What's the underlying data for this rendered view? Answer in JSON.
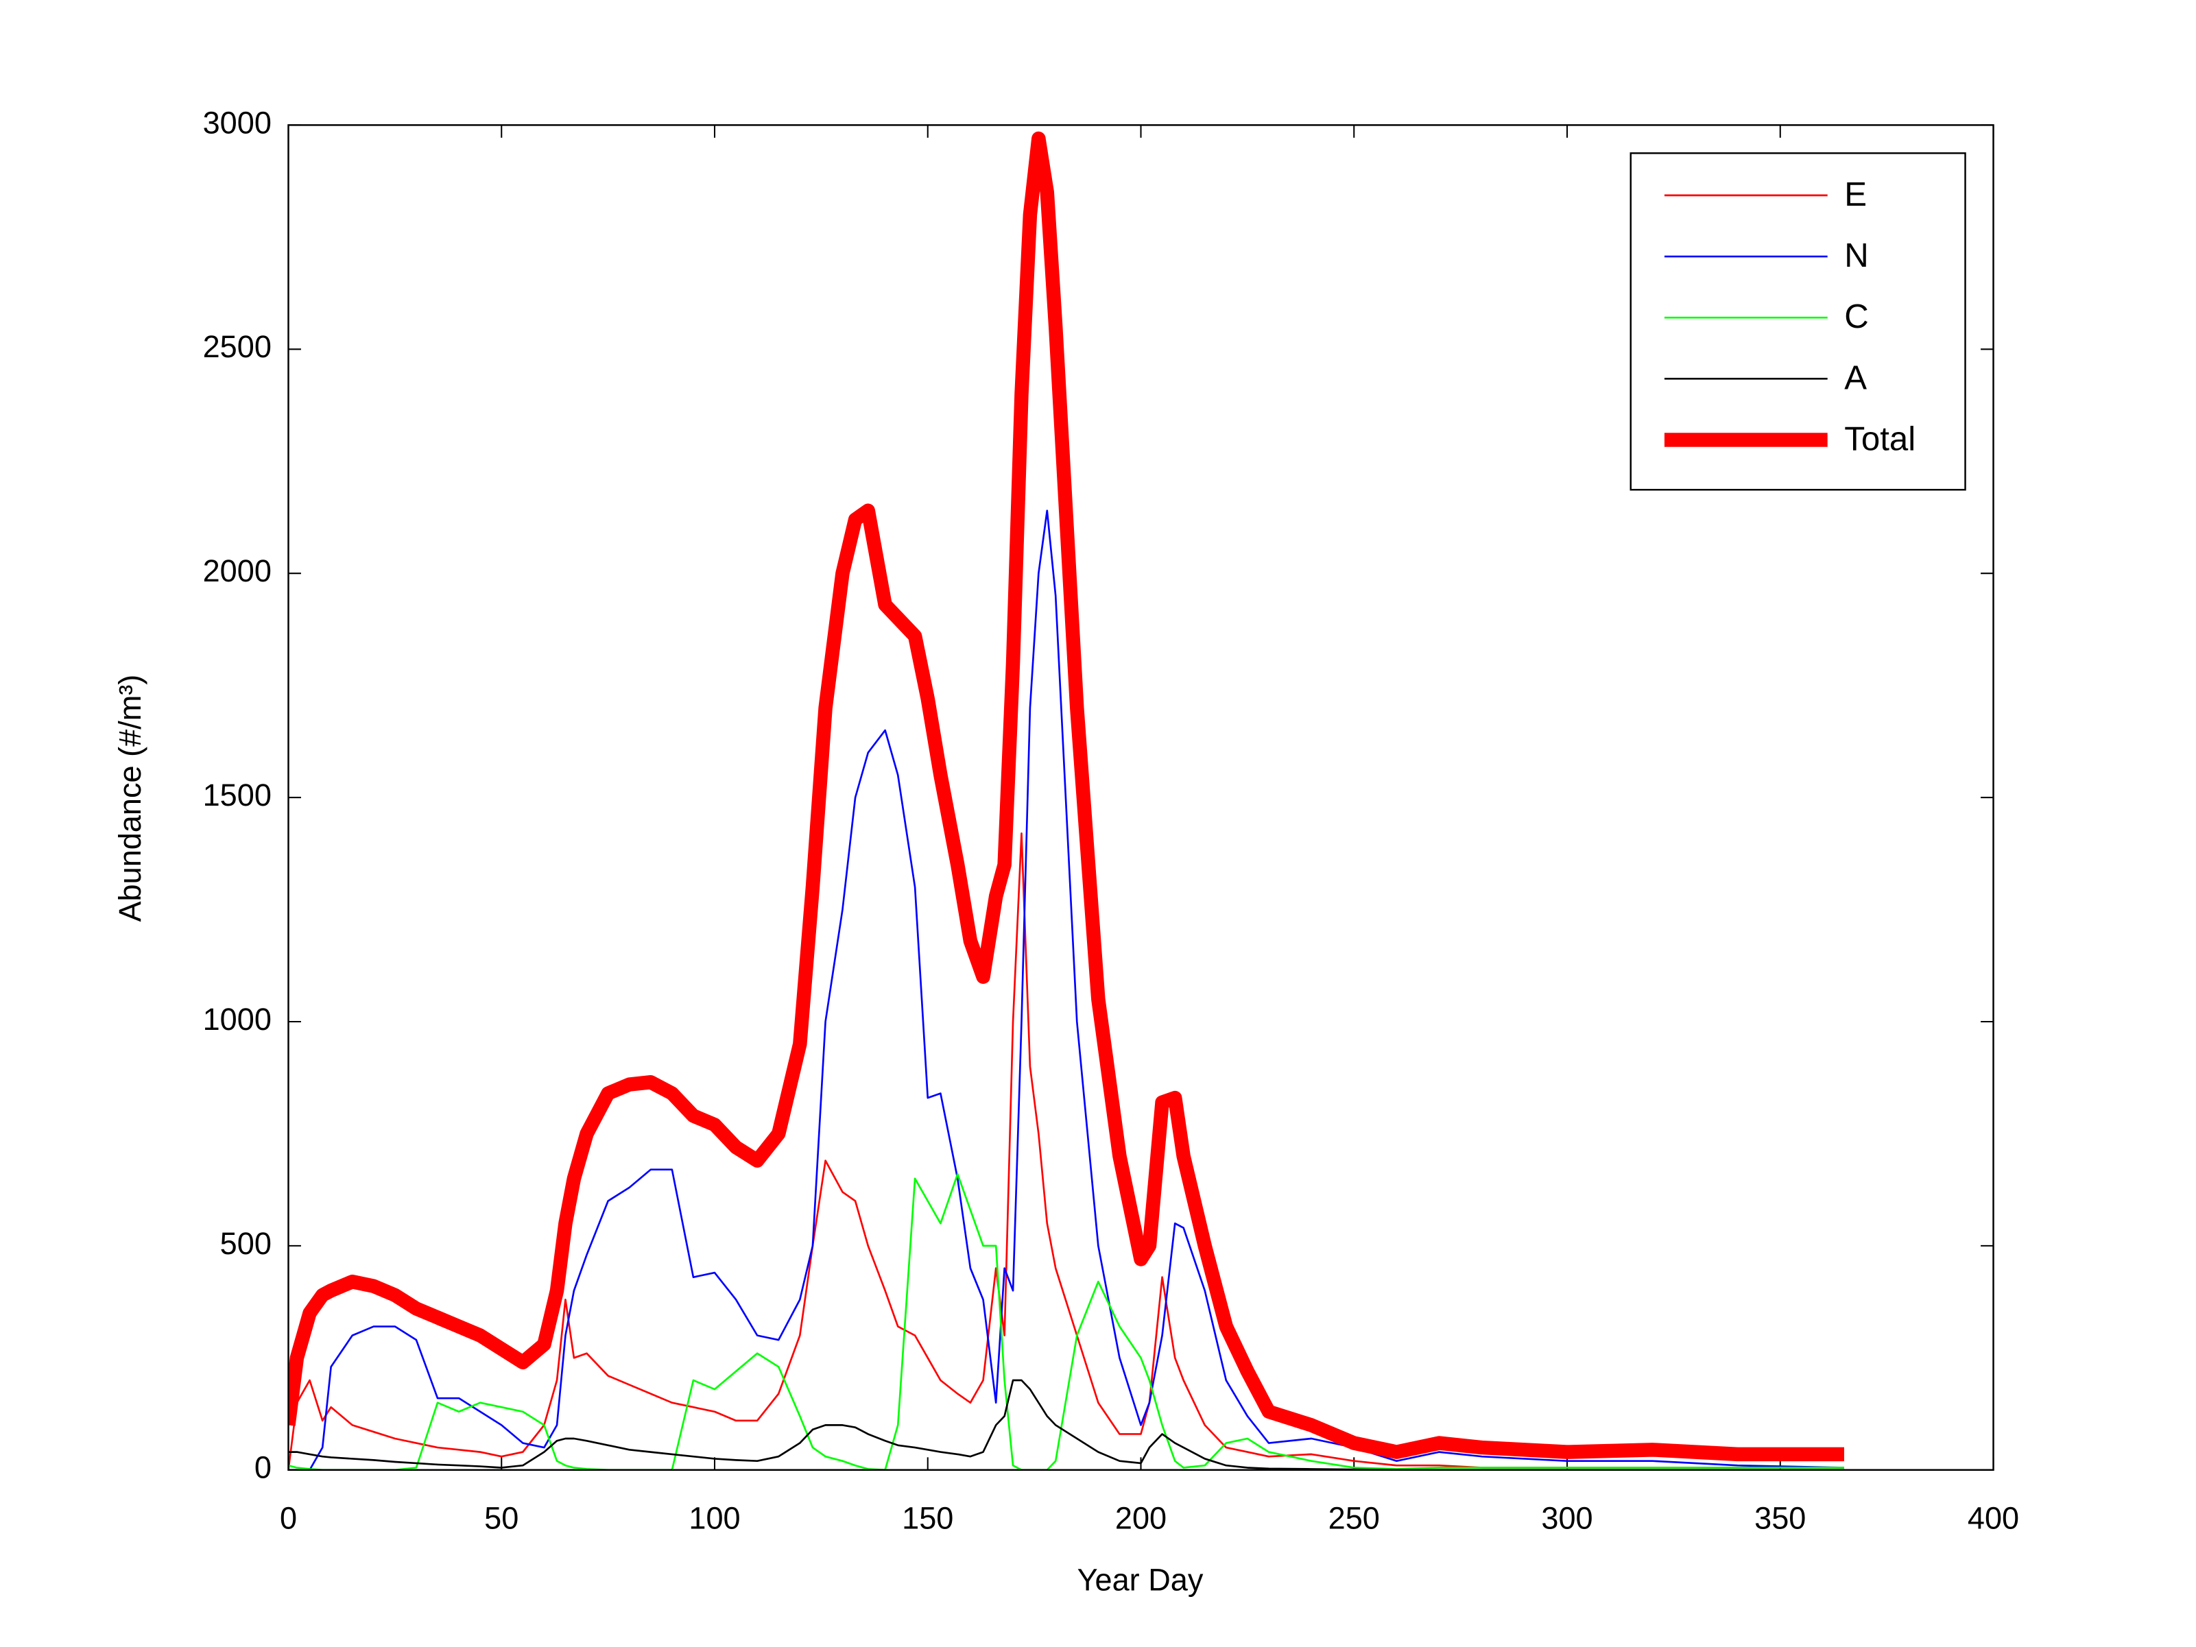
{
  "chart_data": {
    "type": "line",
    "x_label": "Year Day",
    "y_label": "Abundance (#/m³)",
    "xlim": [
      0,
      400
    ],
    "xticks": [
      0,
      50,
      100,
      150,
      200,
      250,
      300,
      350,
      400
    ],
    "ylim": [
      0,
      3000
    ],
    "yticks": [
      0,
      500,
      1000,
      1500,
      2000,
      2500,
      3000
    ],
    "legend": "northeast",
    "x": [
      0,
      2,
      5,
      8,
      10,
      15,
      20,
      25,
      30,
      35,
      40,
      45,
      50,
      55,
      60,
      63,
      65,
      67,
      70,
      75,
      80,
      85,
      90,
      95,
      100,
      105,
      110,
      115,
      120,
      123,
      126,
      130,
      133,
      136,
      140,
      143,
      147,
      150,
      153,
      157,
      160,
      163,
      166,
      168,
      170,
      172,
      174,
      176,
      178,
      180,
      185,
      190,
      195,
      200,
      202,
      205,
      208,
      210,
      215,
      220,
      225,
      230,
      240,
      250,
      260,
      270,
      280,
      300,
      320,
      340,
      365
    ],
    "series": [
      {
        "name": "E",
        "color": "#ff0000",
        "width": 1.3,
        "values": [
          0,
          150,
          200,
          110,
          140,
          100,
          85,
          70,
          60,
          50,
          45,
          40,
          30,
          40,
          100,
          200,
          380,
          250,
          260,
          210,
          190,
          170,
          150,
          140,
          130,
          110,
          110,
          170,
          300,
          500,
          690,
          620,
          600,
          500,
          400,
          320,
          300,
          250,
          200,
          170,
          150,
          200,
          450,
          300,
          1000,
          1420,
          900,
          750,
          550,
          450,
          300,
          150,
          80,
          80,
          150,
          430,
          250,
          200,
          100,
          50,
          40,
          30,
          35,
          20,
          10,
          10,
          5,
          5,
          5,
          5,
          5
        ]
      },
      {
        "name": "N",
        "color": "#0000ff",
        "width": 1.3,
        "values": [
          0,
          0,
          0,
          50,
          230,
          300,
          320,
          320,
          290,
          160,
          160,
          130,
          100,
          60,
          50,
          100,
          300,
          400,
          480,
          600,
          630,
          670,
          670,
          430,
          440,
          380,
          300,
          290,
          380,
          500,
          1000,
          1250,
          1500,
          1600,
          1650,
          1550,
          1300,
          830,
          840,
          650,
          450,
          380,
          150,
          450,
          400,
          1000,
          1700,
          2000,
          2140,
          1950,
          1000,
          500,
          250,
          100,
          150,
          300,
          550,
          540,
          400,
          200,
          120,
          60,
          70,
          50,
          20,
          40,
          30,
          20,
          20,
          10,
          5
        ]
      },
      {
        "name": "C",
        "color": "#00ff00",
        "width": 1.3,
        "values": [
          10,
          5,
          2,
          0,
          0,
          0,
          0,
          0,
          5,
          150,
          130,
          150,
          140,
          130,
          100,
          20,
          10,
          5,
          2,
          0,
          0,
          0,
          0,
          200,
          180,
          220,
          260,
          230,
          120,
          50,
          30,
          20,
          10,
          2,
          0,
          100,
          650,
          600,
          550,
          660,
          580,
          500,
          500,
          200,
          10,
          0,
          0,
          0,
          0,
          20,
          300,
          420,
          320,
          250,
          200,
          100,
          20,
          5,
          10,
          60,
          70,
          40,
          20,
          5,
          2,
          5,
          5,
          5,
          5,
          5,
          5
        ]
      },
      {
        "name": "A",
        "color": "#000000",
        "width": 1.3,
        "values": [
          40,
          40,
          35,
          30,
          28,
          25,
          22,
          18,
          15,
          12,
          10,
          8,
          5,
          10,
          40,
          65,
          70,
          70,
          65,
          55,
          45,
          40,
          35,
          30,
          25,
          22,
          20,
          30,
          60,
          90,
          100,
          100,
          95,
          80,
          65,
          55,
          50,
          45,
          40,
          35,
          30,
          40,
          100,
          120,
          200,
          200,
          180,
          150,
          120,
          100,
          70,
          40,
          20,
          15,
          50,
          80,
          60,
          50,
          25,
          10,
          5,
          3,
          2,
          1,
          0,
          0,
          0,
          0,
          0,
          0,
          0
        ]
      },
      {
        "name": "Total",
        "color": "#ff0000",
        "width": 10,
        "values": [
          100,
          250,
          350,
          390,
          400,
          420,
          410,
          390,
          360,
          340,
          320,
          300,
          270,
          240,
          280,
          400,
          550,
          650,
          750,
          840,
          860,
          865,
          840,
          790,
          770,
          720,
          690,
          750,
          950,
          1300,
          1700,
          2000,
          2120,
          2140,
          1930,
          1900,
          1860,
          1720,
          1550,
          1350,
          1180,
          1100,
          1280,
          1350,
          1800,
          2400,
          2800,
          2970,
          2850,
          2550,
          1700,
          1050,
          700,
          470,
          500,
          820,
          830,
          700,
          500,
          320,
          220,
          130,
          100,
          60,
          40,
          60,
          50,
          40,
          45,
          35,
          35
        ]
      }
    ]
  }
}
